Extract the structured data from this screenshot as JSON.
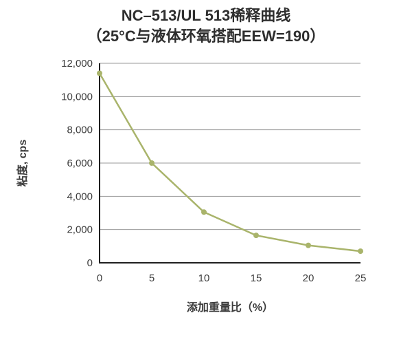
{
  "chart_data": {
    "type": "line",
    "title": "NC–513/UL 513稀释曲线",
    "subtitle": "（25°C与液体环氧搭配EEW=190）",
    "xlabel": "添加重量比（%）",
    "ylabel": "粘度, cps",
    "x": [
      0,
      5,
      10,
      15,
      20,
      25
    ],
    "values": [
      11400,
      6000,
      3050,
      1650,
      1050,
      700
    ],
    "xlim": [
      0,
      25
    ],
    "ylim": [
      0,
      12000
    ],
    "xticks": [
      0,
      5,
      10,
      15,
      20,
      25
    ],
    "xtick_labels": [
      "0",
      "5",
      "10",
      "15",
      "20",
      "25"
    ],
    "yticks": [
      0,
      2000,
      4000,
      6000,
      8000,
      10000,
      12000
    ],
    "ytick_labels": [
      "0",
      "2,000",
      "4,000",
      "6,000",
      "8,000",
      "10,000",
      "12,000"
    ],
    "grid": true,
    "legend": "none",
    "line_color": "#a9b46b"
  },
  "colors": {
    "line": "#a9b46b",
    "grid": "#9a9a9a",
    "axis": "#1f1f1f",
    "text": "#3c3c3c",
    "title": "#2e2e2e"
  }
}
